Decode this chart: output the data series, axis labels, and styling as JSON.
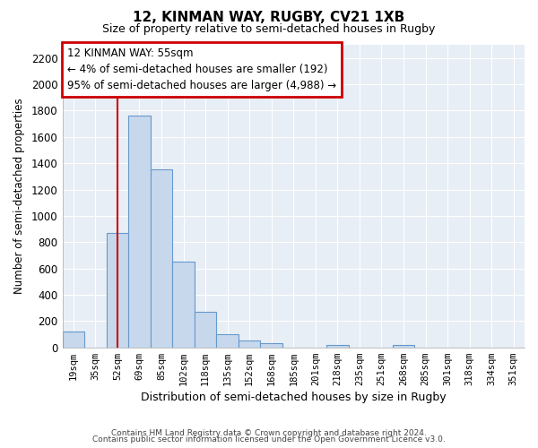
{
  "title": "12, KINMAN WAY, RUGBY, CV21 1XB",
  "subtitle": "Size of property relative to semi-detached houses in Rugby",
  "xlabel": "Distribution of semi-detached houses by size in Rugby",
  "ylabel": "Number of semi-detached properties",
  "bar_color": "#c8d8ec",
  "bar_edge_color": "#6699cc",
  "categories": [
    "19sqm",
    "35sqm",
    "52sqm",
    "69sqm",
    "85sqm",
    "102sqm",
    "118sqm",
    "135sqm",
    "152sqm",
    "168sqm",
    "185sqm",
    "201sqm",
    "218sqm",
    "235sqm",
    "251sqm",
    "268sqm",
    "285sqm",
    "301sqm",
    "318sqm",
    "334sqm",
    "351sqm"
  ],
  "values": [
    120,
    0,
    870,
    1760,
    1350,
    650,
    270,
    100,
    55,
    35,
    0,
    0,
    20,
    0,
    0,
    15,
    0,
    0,
    0,
    0,
    0
  ],
  "ylim": [
    0,
    2300
  ],
  "yticks": [
    0,
    200,
    400,
    600,
    800,
    1000,
    1200,
    1400,
    1600,
    1800,
    2000,
    2200
  ],
  "vline_x_idx": 2,
  "vline_color": "#cc0000",
  "annotation_title": "12 KINMAN WAY: 55sqm",
  "annotation_line1": "← 4% of semi-detached houses are smaller (192)",
  "annotation_line2": "95% of semi-detached houses are larger (4,988) →",
  "footer1": "Contains HM Land Registry data © Crown copyright and database right 2024.",
  "footer2": "Contains public sector information licensed under the Open Government Licence v3.0.",
  "background_color": "#ffffff",
  "plot_bg_color": "#e8eef5",
  "grid_color": "#ffffff"
}
